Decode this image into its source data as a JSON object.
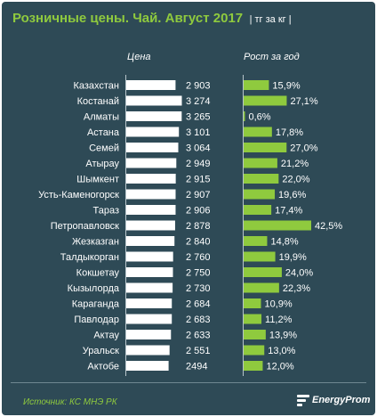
{
  "header": {
    "title": "Розничные цены. Чай. Август 2017",
    "unit": "| тг за кг |"
  },
  "columns": {
    "price": "Цена",
    "growth": "Рост за год"
  },
  "footer": {
    "source": "Источник: КС МНЭ РК",
    "brand": "EnergyProm"
  },
  "colors": {
    "background": "#2e4a56",
    "price_bar": "#ffffff",
    "growth_bar": "#8fca3e",
    "accent": "#8fca3e"
  },
  "chart_data": [
    {
      "type": "bar",
      "orientation": "horizontal",
      "title": "Цена",
      "categories": [
        "Казахстан",
        "Костанай",
        "Алматы",
        "Астана",
        "Семей",
        "Атырау",
        "Шымкент",
        "Усть-Каменогорск",
        "Тараз",
        "Петропавловск",
        "Жезказган",
        "Талдыкорган",
        "Кокшетау",
        "Кызылорда",
        "Караганда",
        "Павлодар",
        "Актау",
        "Уральск",
        "Актобе"
      ],
      "values": [
        2903,
        3274,
        3265,
        3101,
        3064,
        2949,
        2915,
        2907,
        2906,
        2878,
        2840,
        2760,
        2750,
        2730,
        2684,
        2683,
        2633,
        2551,
        2494
      ],
      "labels": [
        "2 903",
        "3 274",
        "3 265",
        "3 101",
        "3 064",
        "2 949",
        "2 915",
        "2 907",
        "2 906",
        "2 878",
        "2 840",
        "2 760",
        "2 750",
        "2 730",
        "2 684",
        "2 683",
        "2 633",
        "2 551",
        "2494"
      ]
    },
    {
      "type": "bar",
      "orientation": "horizontal",
      "title": "Рост за год",
      "categories": [
        "Казахстан",
        "Костанай",
        "Алматы",
        "Астана",
        "Семей",
        "Атырау",
        "Шымкент",
        "Усть-Каменогорск",
        "Тараз",
        "Петропавловск",
        "Жезказган",
        "Талдыкорган",
        "Кокшетау",
        "Кызылорда",
        "Караганда",
        "Павлодар",
        "Актау",
        "Уральск",
        "Актобе"
      ],
      "values": [
        15.9,
        27.1,
        0.6,
        17.8,
        27.0,
        21.2,
        22.0,
        19.6,
        17.4,
        42.5,
        14.8,
        19.9,
        24.0,
        22.3,
        10.9,
        11.2,
        13.9,
        13.0,
        12.0
      ],
      "labels": [
        "15,9%",
        "27,1%",
        "0,6%",
        "17,8%",
        "27,0%",
        "21,2%",
        "22,0%",
        "19,6%",
        "17,4%",
        "42,5%",
        "14,8%",
        "19,9%",
        "24,0%",
        "22,3%",
        "10,9%",
        "11,2%",
        "13,9%",
        "13,0%",
        "12,0%"
      ]
    }
  ]
}
